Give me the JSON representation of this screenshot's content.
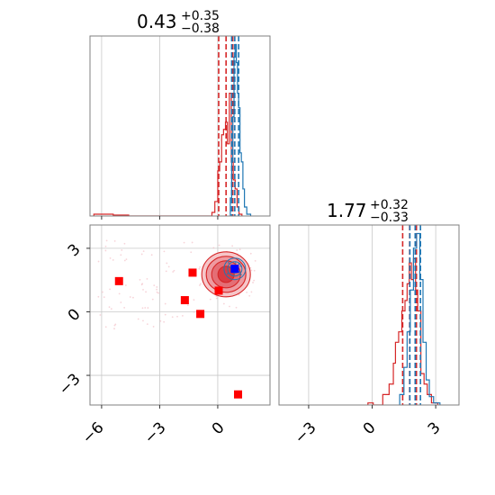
{
  "chart_data": [
    {
      "type": "histogram",
      "panel": "top-left",
      "title_value": "0.43",
      "title_plus": "+0.35",
      "title_minus": "−0.38",
      "xlim": [
        -6.6,
        2.7
      ],
      "grid": true,
      "series": [
        {
          "color": "#d62728",
          "bins": [
            [
              -6.4,
              -5.9,
              0.01
            ],
            [
              -5.9,
              -5.4,
              0.01
            ],
            [
              -5.4,
              -4.6,
              0.005
            ],
            [
              -0.3,
              -0.15,
              0.02
            ],
            [
              -0.15,
              0.0,
              0.08
            ],
            [
              0.0,
              0.1,
              0.25
            ],
            [
              0.1,
              0.2,
              0.3
            ],
            [
              0.2,
              0.3,
              0.45
            ],
            [
              0.3,
              0.4,
              0.48
            ],
            [
              0.4,
              0.5,
              0.52
            ],
            [
              0.5,
              0.6,
              0.4
            ],
            [
              0.6,
              0.7,
              0.68
            ],
            [
              0.7,
              0.8,
              0.3
            ],
            [
              0.8,
              0.9,
              0.2
            ],
            [
              0.9,
              1.0,
              0.15
            ],
            [
              1.0,
              1.1,
              0.05
            ],
            [
              1.1,
              1.25,
              0.01
            ]
          ],
          "quantiles": [
            0.05,
            0.43,
            0.78
          ]
        },
        {
          "color": "#1f77b4",
          "bins": [
            [
              0.65,
              0.72,
              0.1
            ],
            [
              0.72,
              0.78,
              0.3
            ],
            [
              0.78,
              0.84,
              0.55
            ],
            [
              0.84,
              0.9,
              0.88
            ],
            [
              0.9,
              0.96,
              0.95
            ],
            [
              0.96,
              1.02,
              0.85
            ],
            [
              1.02,
              1.08,
              0.68
            ],
            [
              1.08,
              1.15,
              0.6
            ],
            [
              1.15,
              1.22,
              0.35
            ],
            [
              1.22,
              1.3,
              0.3
            ],
            [
              1.3,
              1.38,
              0.15
            ],
            [
              1.38,
              1.5,
              0.05
            ],
            [
              1.5,
              1.7,
              0.01
            ]
          ],
          "quantiles": [
            0.72,
            0.88,
            1.08
          ]
        }
      ]
    },
    {
      "type": "scatter",
      "panel": "bottom-left",
      "xlim": [
        -6.6,
        2.7
      ],
      "ylim": [
        -4.4,
        4.1
      ],
      "x_ticks": [
        "−6",
        "−3",
        "0"
      ],
      "y_ticks": [
        "3",
        "0",
        "−3"
      ],
      "grid": true,
      "outliers_red": [
        [
          -5.1,
          1.45
        ],
        [
          -1.3,
          1.85
        ],
        [
          -1.7,
          0.55
        ],
        [
          -0.9,
          -0.1
        ],
        [
          0.05,
          1.0
        ],
        [
          1.05,
          -3.9
        ]
      ],
      "outlier_blue": [
        0.88,
        2.03
      ],
      "contour_center_red": [
        0.43,
        1.77
      ],
      "contour_center_blue": [
        0.88,
        2.03
      ]
    },
    {
      "type": "histogram",
      "panel": "bottom-right",
      "title_value": "1.77",
      "title_plus": "+0.32",
      "title_minus": "−0.33",
      "xlim": [
        -4.4,
        4.1
      ],
      "x_ticks": [
        "−3",
        "0",
        "3"
      ],
      "grid": true,
      "series": [
        {
          "color": "#d62728",
          "bins": [
            [
              -0.2,
              0.05,
              0.01
            ],
            [
              0.5,
              0.8,
              0.05
            ],
            [
              0.8,
              1.0,
              0.1
            ],
            [
              1.0,
              1.1,
              0.2
            ],
            [
              1.1,
              1.25,
              0.3
            ],
            [
              1.25,
              1.4,
              0.35
            ],
            [
              1.4,
              1.55,
              0.45
            ],
            [
              1.55,
              1.65,
              0.5
            ],
            [
              1.65,
              1.75,
              0.58
            ],
            [
              1.75,
              1.85,
              0.68
            ],
            [
              1.85,
              1.95,
              0.6
            ],
            [
              1.95,
              2.05,
              0.7
            ],
            [
              2.05,
              2.15,
              0.55
            ],
            [
              2.15,
              2.3,
              0.45
            ],
            [
              2.3,
              2.45,
              0.15
            ],
            [
              2.45,
              2.6,
              0.1
            ],
            [
              2.6,
              2.8,
              0.05
            ],
            [
              2.8,
              3.1,
              0.01
            ]
          ],
          "quantiles": [
            1.44,
            1.77,
            2.09
          ]
        },
        {
          "color": "#1f77b4",
          "bins": [
            [
              1.3,
              1.5,
              0.05
            ],
            [
              1.5,
              1.65,
              0.18
            ],
            [
              1.65,
              1.8,
              0.35
            ],
            [
              1.8,
              1.95,
              0.55
            ],
            [
              1.95,
              2.1,
              0.75
            ],
            [
              2.1,
              2.25,
              0.82
            ],
            [
              2.25,
              2.4,
              0.6
            ],
            [
              2.4,
              2.55,
              0.3
            ],
            [
              2.55,
              2.7,
              0.12
            ],
            [
              2.7,
              2.9,
              0.04
            ],
            [
              2.9,
              3.2,
              0.01
            ]
          ],
          "quantiles": [
            1.78,
            2.03,
            2.28
          ]
        }
      ]
    }
  ]
}
